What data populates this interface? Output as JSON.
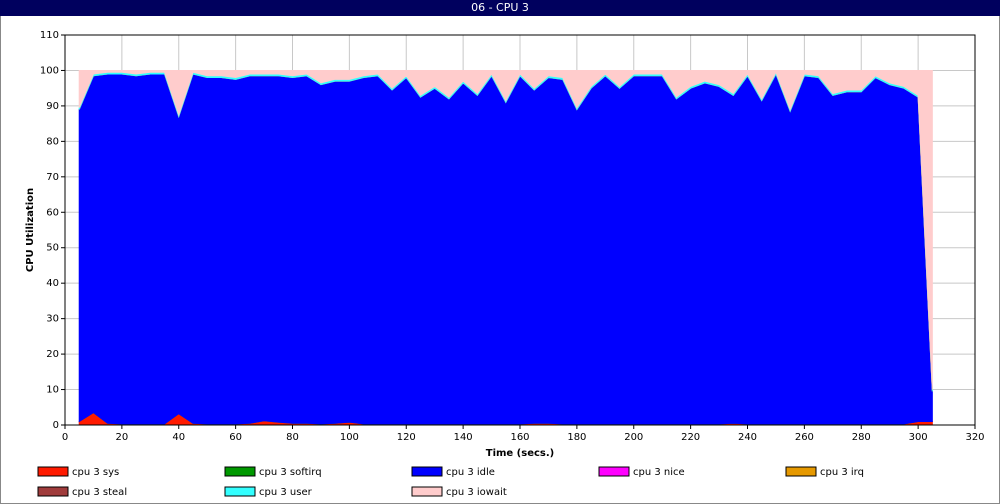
{
  "chart_data": {
    "type": "stacked_area",
    "title": "06 - CPU 3",
    "x_label": "Time (secs.)",
    "y_label": "CPU Utilization",
    "x": [
      5,
      10,
      15,
      20,
      25,
      30,
      35,
      40,
      45,
      50,
      55,
      60,
      65,
      70,
      75,
      80,
      85,
      90,
      95,
      100,
      105,
      110,
      115,
      120,
      125,
      130,
      135,
      140,
      145,
      150,
      155,
      160,
      165,
      170,
      175,
      180,
      185,
      190,
      195,
      200,
      205,
      210,
      215,
      220,
      225,
      230,
      235,
      240,
      245,
      250,
      255,
      260,
      265,
      270,
      275,
      280,
      285,
      290,
      295,
      300,
      305
    ],
    "xlim": [
      0,
      320
    ],
    "xticks": [
      0,
      20,
      40,
      60,
      80,
      100,
      120,
      140,
      160,
      180,
      200,
      220,
      240,
      260,
      280,
      300,
      320
    ],
    "ylim": [
      0,
      110
    ],
    "yticks": [
      0,
      10,
      20,
      30,
      40,
      50,
      60,
      70,
      80,
      90,
      100,
      110
    ],
    "grid": true,
    "series": [
      {
        "name": "cpu 3 sys",
        "color": "#ff1a00",
        "values": [
          1.0,
          3.5,
          0.5,
          0.3,
          0.3,
          0.3,
          0.3,
          3.2,
          0.5,
          0.3,
          0.3,
          0.3,
          0.5,
          1.2,
          0.8,
          0.5,
          0.5,
          0.3,
          0.5,
          0.8,
          0.3,
          0.3,
          0.3,
          0.3,
          0.3,
          0.3,
          0.3,
          0.3,
          0.3,
          0.3,
          0.3,
          0.3,
          0.5,
          0.5,
          0.3,
          0.3,
          0.3,
          0.3,
          0.3,
          0.3,
          0.3,
          0.3,
          0.3,
          0.3,
          0.3,
          0.3,
          0.5,
          0.3,
          0.3,
          0.3,
          0.3,
          0.3,
          0.3,
          0.3,
          0.3,
          0.3,
          0.3,
          0.3,
          0.3,
          1.0,
          1.0
        ]
      },
      {
        "name": "cpu 3 softirq",
        "color": "#009900",
        "values": [
          0,
          0,
          0,
          0,
          0,
          0,
          0,
          0,
          0,
          0,
          0,
          0,
          0,
          0,
          0,
          0,
          0,
          0,
          0,
          0,
          0,
          0,
          0,
          0,
          0,
          0,
          0,
          0,
          0,
          0,
          0,
          0,
          0,
          0,
          0,
          0,
          0,
          0,
          0,
          0,
          0,
          0,
          0,
          0,
          0,
          0,
          0,
          0,
          0,
          0,
          0,
          0,
          0,
          0,
          0,
          0,
          0,
          0,
          0,
          0,
          0
        ]
      },
      {
        "name": "cpu 3 idle",
        "color": "#0000ff",
        "values": [
          88,
          95,
          98.5,
          98.7,
          98.2,
          98.7,
          98.7,
          83.8,
          98.5,
          97.7,
          97.7,
          97.2,
          98,
          97.3,
          97.7,
          97.5,
          98,
          95.7,
          96.5,
          96.2,
          97.7,
          98.2,
          94.2,
          97.7,
          92.2,
          94.7,
          91.7,
          96.2,
          92.7,
          98.2,
          90.7,
          98.2,
          94,
          97.5,
          97.2,
          88.7,
          94.7,
          98.2,
          94.7,
          98.2,
          98.2,
          98.2,
          91.7,
          94.7,
          96.2,
          95.2,
          92.5,
          98.2,
          91.2,
          98.7,
          88.2,
          98.2,
          97.7,
          92.7,
          93.7,
          93.7,
          97.7,
          95.7,
          94.7,
          91.5,
          8.5
        ]
      },
      {
        "name": "cpu 3 nice",
        "color": "#ff00ff",
        "values": [
          0,
          0,
          0,
          0,
          0,
          0,
          0,
          0,
          0,
          0,
          0,
          0,
          0,
          0,
          0,
          0,
          0,
          0,
          0,
          0,
          0,
          0,
          0,
          0,
          0,
          0,
          0,
          0,
          0,
          0,
          0,
          0,
          0,
          0,
          0,
          0,
          0,
          0,
          0,
          0,
          0,
          0,
          0,
          0,
          0,
          0,
          0,
          0,
          0,
          0,
          0,
          0,
          0,
          0,
          0,
          0,
          0,
          0,
          0,
          0,
          0
        ]
      },
      {
        "name": "cpu 3 irq",
        "color": "#e69900",
        "values": [
          0,
          0,
          0,
          0,
          0,
          0,
          0,
          0,
          0,
          0,
          0,
          0,
          0,
          0,
          0,
          0,
          0,
          0,
          0,
          0,
          0,
          0,
          0,
          0,
          0,
          0,
          0,
          0,
          0,
          0,
          0,
          0,
          0,
          0,
          0,
          0,
          0,
          0,
          0,
          0,
          0,
          0,
          0,
          0,
          0,
          0,
          0,
          0,
          0,
          0,
          0,
          0,
          0,
          0,
          0,
          0,
          0,
          0,
          0,
          0,
          0
        ]
      },
      {
        "name": "cpu 3 steal",
        "color": "#a03c3c",
        "values": [
          0,
          0,
          0,
          0,
          0,
          0,
          0,
          0,
          0,
          0,
          0,
          0,
          0,
          0,
          0,
          0,
          0,
          0,
          0,
          0,
          0,
          0,
          0,
          0,
          0,
          0,
          0,
          0,
          0,
          0,
          0,
          0,
          0,
          0,
          0,
          0,
          0,
          0,
          0,
          0,
          0,
          0,
          0,
          0,
          0,
          0,
          0,
          0,
          0,
          0,
          0,
          0,
          0,
          0,
          0,
          0,
          0,
          0,
          0,
          0,
          0
        ]
      },
      {
        "name": "cpu 3 user",
        "color": "#33ffff",
        "values": [
          0.5,
          0.5,
          0.5,
          0.5,
          0.5,
          0.5,
          0.5,
          0.5,
          0.5,
          0.5,
          0.5,
          0.5,
          0.5,
          0.5,
          0.5,
          0.5,
          0.5,
          0.5,
          0.5,
          0.5,
          0.5,
          0.5,
          0.5,
          0.5,
          0.5,
          0.5,
          0.5,
          0.5,
          0.5,
          0.5,
          0.5,
          0.5,
          0.5,
          0.5,
          0.5,
          0.5,
          0.5,
          0.5,
          0.5,
          0.5,
          0.5,
          0.5,
          0.5,
          0.5,
          0.5,
          0.5,
          0.5,
          0.5,
          0.5,
          0.5,
          0.5,
          0.5,
          0.5,
          0.5,
          0.5,
          0.5,
          0.5,
          0.5,
          0.5,
          0.5,
          0.5
        ]
      },
      {
        "name": "cpu 3 iowait",
        "color": "#ffcccc",
        "values": [
          10.5,
          1,
          0.5,
          0.5,
          1,
          0.5,
          0.5,
          12.5,
          0.5,
          1.5,
          1.5,
          2,
          1,
          1,
          1,
          1.5,
          1,
          3.5,
          2.5,
          2.5,
          1.5,
          1,
          5,
          1.5,
          7,
          4.5,
          7.5,
          3,
          6.5,
          1,
          8.5,
          1,
          5,
          1.5,
          2,
          10.5,
          4.5,
          1,
          4.5,
          1,
          1,
          1,
          7.5,
          4.5,
          3,
          4,
          6.5,
          1,
          8,
          0.5,
          11,
          1,
          1.5,
          6.5,
          5.5,
          5.5,
          1.5,
          3.5,
          4.5,
          7,
          90
        ]
      }
    ]
  }
}
